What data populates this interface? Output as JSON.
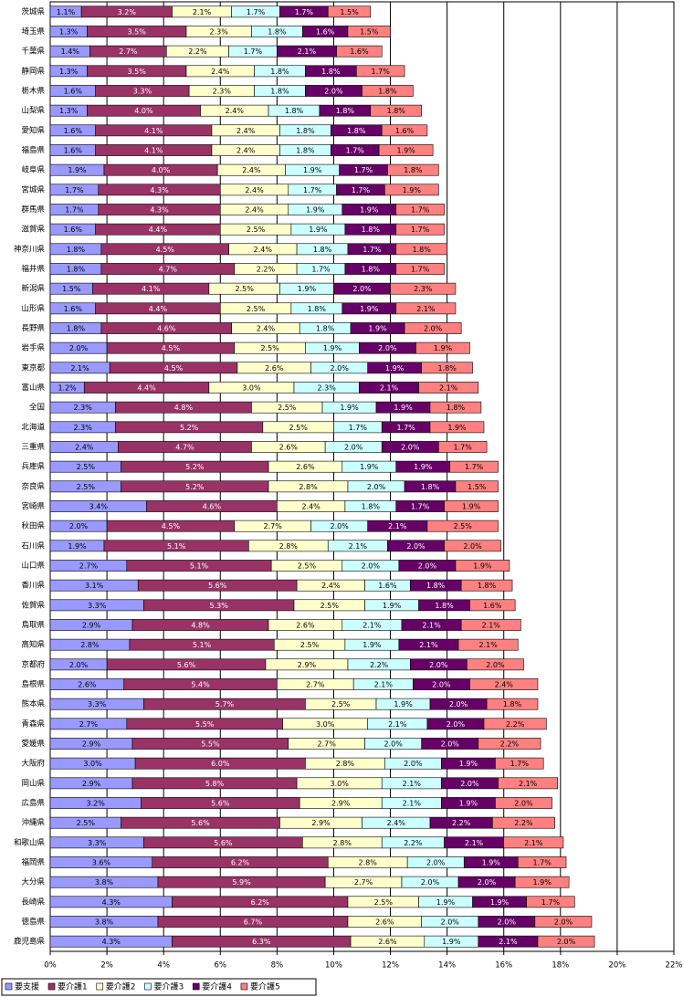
{
  "chart_data": {
    "type": "stacked-bar-horizontal",
    "categories": [
      "茨城県",
      "埼玉県",
      "千葉県",
      "静岡県",
      "栃木県",
      "山梨県",
      "愛知県",
      "福島県",
      "岐阜県",
      "宮城県",
      "群馬県",
      "滋賀県",
      "神奈川県",
      "福井県",
      "新潟県",
      "山形県",
      "長野県",
      "岩手県",
      "東京都",
      "富山県",
      "全国",
      "北海道",
      "三重県",
      "兵庫県",
      "奈良県",
      "宮崎県",
      "秋田県",
      "石川県",
      "山口県",
      "香川県",
      "佐賀県",
      "鳥取県",
      "高知県",
      "京都府",
      "島根県",
      "熊本県",
      "青森県",
      "愛媛県",
      "大阪府",
      "岡山県",
      "広島県",
      "沖縄県",
      "和歌山県",
      "福岡県",
      "大分県",
      "長崎県",
      "徳島県",
      "鹿児島県"
    ],
    "series": [
      {
        "name": "要支援",
        "color": "#9999ff",
        "values": [
          1.1,
          1.3,
          1.4,
          1.3,
          1.6,
          1.3,
          1.6,
          1.6,
          1.9,
          1.7,
          1.7,
          1.6,
          1.8,
          1.8,
          1.5,
          1.6,
          1.8,
          2.0,
          2.1,
          1.2,
          2.3,
          2.3,
          2.4,
          2.5,
          2.5,
          3.4,
          2.0,
          1.9,
          2.7,
          3.1,
          3.3,
          2.9,
          2.8,
          2.0,
          2.6,
          3.3,
          2.7,
          2.9,
          3.0,
          2.9,
          3.2,
          2.5,
          3.3,
          3.6,
          3.8,
          4.3,
          3.8,
          4.3
        ],
        "value_labels": [
          "1.1%",
          "1.3%",
          "1.4%",
          "1.3%",
          "1.6%",
          "1.3%",
          "1.6%",
          "1.6%",
          "1.9%",
          "1.7%",
          "1.7%",
          "1.6%",
          "1.8%",
          "1.8%",
          "1.5%",
          "1.6%",
          "1.8%",
          "2.0%",
          "2.1%",
          "1.2%",
          "2.3%",
          "2.3%",
          "2.4%",
          "2.5%",
          "2.5%",
          "3.4%",
          "2.0%",
          "1.9%",
          "2.7%",
          "3.1%",
          "3.3%",
          "2.9%",
          "2.8%",
          "2.0%",
          "2.6%",
          "3.3%",
          "2.7%",
          "2.9%",
          "3.0%",
          "2.9%",
          "3.2%",
          "2.5%",
          "3.3%",
          "3.6%",
          "3.8%",
          "4.3%",
          "3.8%",
          "4.3%"
        ]
      },
      {
        "name": "要介護1",
        "color": "#993366",
        "values": [
          3.2,
          3.5,
          2.7,
          3.5,
          3.3,
          4.0,
          4.1,
          4.1,
          4.0,
          4.3,
          4.3,
          4.4,
          4.5,
          4.7,
          4.1,
          4.4,
          4.6,
          4.5,
          4.5,
          4.4,
          4.8,
          5.2,
          4.7,
          5.2,
          5.2,
          4.6,
          4.5,
          5.1,
          5.1,
          5.6,
          5.3,
          4.8,
          5.1,
          5.6,
          5.4,
          5.7,
          5.5,
          5.5,
          6.0,
          5.8,
          5.6,
          5.6,
          5.6,
          6.2,
          5.9,
          6.2,
          6.7,
          6.3
        ],
        "value_labels": [
          "3.2%",
          "3.5%",
          "2.7%",
          "3.5%",
          "3.3%",
          "4.0%",
          "4.1%",
          "4.1%",
          "4.0%",
          "4.3%",
          "4.3%",
          "4.4%",
          "4.5%",
          "4.7%",
          "4.1%",
          "4.4%",
          "4.6%",
          "4.5%",
          "4.5%",
          "4.4%",
          "4.8%",
          "5.2%",
          "4.7%",
          "5.2%",
          "5.2%",
          "4.6%",
          "4.5%",
          "5.1%",
          "5.1%",
          "5.6%",
          "5.3%",
          "4.8%",
          "5.1%",
          "5.6%",
          "5.4%",
          "5.7%",
          "5.5%",
          "5.5%",
          "6.0%",
          "5.8%",
          "5.6%",
          "5.6%",
          "5.6%",
          "6.2%",
          "5.9%",
          "6.2%",
          "6.7%",
          "6.3%"
        ]
      },
      {
        "name": "要介護2",
        "color": "#ffffcc",
        "values": [
          2.1,
          2.3,
          2.2,
          2.4,
          2.3,
          2.4,
          2.4,
          2.4,
          2.4,
          2.4,
          2.4,
          2.5,
          2.4,
          2.2,
          2.5,
          2.5,
          2.4,
          2.5,
          2.6,
          3.0,
          2.5,
          2.5,
          2.6,
          2.6,
          2.8,
          2.4,
          2.7,
          2.8,
          2.5,
          2.4,
          2.5,
          2.6,
          2.5,
          2.9,
          2.7,
          2.5,
          3.0,
          2.7,
          2.8,
          3.0,
          2.9,
          2.9,
          2.8,
          2.8,
          2.7,
          2.5,
          2.6,
          2.6
        ],
        "value_labels": [
          "2.1%",
          "2.3%",
          "2.2%",
          "2.4%",
          "2.3%",
          "2.4%",
          "2.4%",
          "2.4%",
          "2.4%",
          "2.4%",
          "2.4%",
          "2.5%",
          "2.4%",
          "2.2%",
          "2.5%",
          "2.5%",
          "2.4%",
          "2.5%",
          "2.6%",
          "3.0%",
          "2.5%",
          "2.5%",
          "2.6%",
          "2.6%",
          "2.8%",
          "2.4%",
          "2.7%",
          "2.8%",
          "2.5%",
          "2.4%",
          "2.5%",
          "2.6%",
          "2.5%",
          "2.9%",
          "2.7%",
          "2.5%",
          "3.0%",
          "2.7%",
          "2.8%",
          "3.0%",
          "2.9%",
          "2.9%",
          "2.8%",
          "2.8%",
          "2.7%",
          "2.5%",
          "2.6%",
          "2.6%"
        ]
      },
      {
        "name": "要介護3",
        "color": "#ccffff",
        "values": [
          1.7,
          1.8,
          1.7,
          1.8,
          1.8,
          1.8,
          1.8,
          1.8,
          1.9,
          1.7,
          1.9,
          1.9,
          1.8,
          1.7,
          1.9,
          1.8,
          1.8,
          1.9,
          2.0,
          2.3,
          1.9,
          1.7,
          2.0,
          1.9,
          2.0,
          1.8,
          2.0,
          2.1,
          2.0,
          1.6,
          1.9,
          2.1,
          1.9,
          2.2,
          2.1,
          1.9,
          2.1,
          2.0,
          2.0,
          2.1,
          2.1,
          2.4,
          2.2,
          2.0,
          2.0,
          1.9,
          2.0,
          1.9
        ],
        "value_labels": [
          "1.7%",
          "1.8%",
          "1.7%",
          "1.8%",
          "1.8%",
          "1.8%",
          "1.8%",
          "1.8%",
          "1.9%",
          "1.7%",
          "1.9%",
          "1.9%",
          "1.8%",
          "1.7%",
          "1.9%",
          "1.8%",
          "1.8%",
          "1.9%",
          "2.0%",
          "2.3%",
          "1.9%",
          "1.7%",
          "2.0%",
          "1.9%",
          "2.0%",
          "1.8%",
          "2.0%",
          "2.1%",
          "2.0%",
          "1.6%",
          "1.9%",
          "2.1%",
          "1.9%",
          "2.2%",
          "2.1%",
          "1.9%",
          "2.1%",
          "2.0%",
          "2.0%",
          "2.1%",
          "2.1%",
          "2.4%",
          "2.2%",
          "2.0%",
          "2.0%",
          "1.9%",
          "2.0%",
          "1.9%"
        ]
      },
      {
        "name": "要介護4",
        "color": "#660066",
        "values": [
          1.7,
          1.6,
          2.1,
          1.8,
          2.0,
          1.8,
          1.8,
          1.7,
          1.7,
          1.7,
          1.9,
          1.8,
          1.7,
          1.8,
          2.0,
          1.9,
          1.9,
          2.0,
          1.9,
          2.1,
          1.9,
          1.7,
          2.0,
          1.9,
          1.8,
          1.7,
          2.1,
          2.0,
          2.0,
          1.8,
          1.8,
          2.1,
          2.1,
          2.0,
          2.0,
          2.0,
          2.0,
          2.0,
          1.9,
          2.0,
          1.9,
          2.2,
          2.1,
          1.9,
          2.0,
          1.9,
          2.0,
          2.1
        ],
        "value_labels": [
          "1.7%",
          "1.6%",
          "2.1%",
          "1.8%",
          "2.0%",
          "1.8%",
          "1.8%",
          "1.7%",
          "1.7%",
          "1.7%",
          "1.9%",
          "1.8%",
          "1.7%",
          "1.8%",
          "2.0%",
          "1.9%",
          "1.9%",
          "2.0%",
          "1.9%",
          "2.1%",
          "1.9%",
          "1.7%",
          "2.0%",
          "1.9%",
          "1.8%",
          "1.7%",
          "2.1%",
          "2.0%",
          "2.0%",
          "1.8%",
          "1.8%",
          "2.1%",
          "2.1%",
          "2.0%",
          "2.0%",
          "2.0%",
          "2.0%",
          "2.0%",
          "1.9%",
          "2.0%",
          "1.9%",
          "2.2%",
          "2.1%",
          "1.9%",
          "2.0%",
          "1.9%",
          "2.0%",
          "2.1%"
        ]
      },
      {
        "name": "要介護5",
        "color": "#ff8080",
        "values": [
          1.5,
          1.5,
          1.6,
          1.7,
          1.8,
          1.8,
          1.6,
          1.9,
          1.8,
          1.9,
          1.7,
          1.7,
          1.8,
          1.7,
          2.3,
          2.1,
          2.0,
          1.9,
          1.8,
          2.1,
          1.8,
          1.9,
          1.7,
          1.7,
          1.5,
          1.9,
          2.5,
          2.0,
          1.9,
          1.8,
          1.6,
          2.1,
          2.1,
          2.0,
          2.4,
          1.8,
          2.2,
          2.2,
          1.7,
          2.1,
          2.0,
          2.2,
          2.1,
          1.7,
          1.9,
          1.7,
          2.0,
          2.0
        ],
        "value_labels": [
          "1.5%",
          "1.5%",
          "1.6%",
          "1.7%",
          "1.8%",
          "1.8%",
          "1.6%",
          "1.9%",
          "1.8%",
          "1.9%",
          "1.7%",
          "1.7%",
          "1.8%",
          "1.7%",
          "2.3%",
          "2.1%",
          "2.0%",
          "1.9%",
          "1.8%",
          "2.1%",
          "1.8%",
          "1.9%",
          "1.7%",
          "1.7%",
          "1.5%",
          "1.9%",
          "2.5%",
          "2.0%",
          "1.9%",
          "1.8%",
          "1.6%",
          "2.1%",
          "2.1%",
          "2.0%",
          "2.4%",
          "1.8%",
          "2.2%",
          "2.2%",
          "1.7%",
          "2.1%",
          "2.0%",
          "2.2%",
          "2.1%",
          "1.7%",
          "1.9%",
          "1.7%",
          "2.0%",
          "2.0%"
        ]
      }
    ],
    "xlim": [
      0,
      22
    ],
    "xticks": [
      {
        "value": 0,
        "label": "0%"
      },
      {
        "value": 2,
        "label": "2%"
      },
      {
        "value": 4,
        "label": "4%"
      },
      {
        "value": 6,
        "label": "6%"
      },
      {
        "value": 8,
        "label": "8%"
      },
      {
        "value": 10,
        "label": "10%"
      },
      {
        "value": 12,
        "label": "12%"
      },
      {
        "value": 14,
        "label": "14%"
      },
      {
        "value": 16,
        "label": "16%"
      },
      {
        "value": 18,
        "label": "18%"
      },
      {
        "value": 20,
        "label": "20%"
      },
      {
        "value": 22,
        "label": "22%"
      }
    ],
    "grid": true,
    "legend": "bottom-left"
  }
}
